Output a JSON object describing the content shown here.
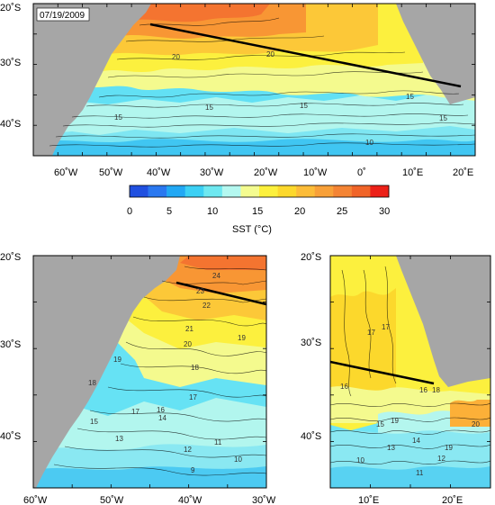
{
  "date": "07/19/2009",
  "colorbar": {
    "label": "SST (°C)",
    "ticks": [
      "0",
      "5",
      "10",
      "15",
      "20",
      "25",
      "30"
    ],
    "colors": [
      "#2050e0",
      "#2a78f0",
      "#22a8f4",
      "#3cd0f4",
      "#6ee8f0",
      "#b4f8f0",
      "#f4fc90",
      "#fcf03c",
      "#fcd82c",
      "#fcbc38",
      "#f8a038",
      "#f48434",
      "#f06428",
      "#ec2018"
    ]
  },
  "colors": {
    "land": "#a6a6a6",
    "text": "#000000"
  },
  "panels": {
    "top": {
      "lat_labels": [
        "20˚S",
        "30˚S",
        "40˚S"
      ],
      "lon_labels": [
        "60˚W",
        "50˚W",
        "40˚W",
        "30˚W",
        "20˚W",
        "10˚W",
        "0˚",
        "10˚E",
        "20˚E"
      ],
      "contour_labels": [
        "20",
        "20",
        "15",
        "15",
        "15",
        "15",
        "10",
        "15"
      ]
    },
    "bottom_left": {
      "lat_labels": [
        "20˚S",
        "30˚S",
        "40˚S"
      ],
      "lon_labels": [
        "60˚W",
        "50˚W",
        "40˚W",
        "30˚W"
      ],
      "contour_labels": [
        "24",
        "23",
        "22",
        "21",
        "20",
        "19",
        "19",
        "18",
        "18",
        "17",
        "17",
        "16",
        "15",
        "14",
        "13",
        "12",
        "11",
        "10",
        "9"
      ]
    },
    "bottom_right": {
      "lat_labels": [
        "20˚S",
        "30˚S",
        "40˚S"
      ],
      "lon_labels": [
        "10˚E",
        "20˚E"
      ],
      "contour_labels": [
        "19",
        "18",
        "17",
        "17",
        "16",
        "16",
        "15",
        "14",
        "20",
        "19",
        "10",
        "11",
        "12",
        "13"
      ]
    }
  }
}
